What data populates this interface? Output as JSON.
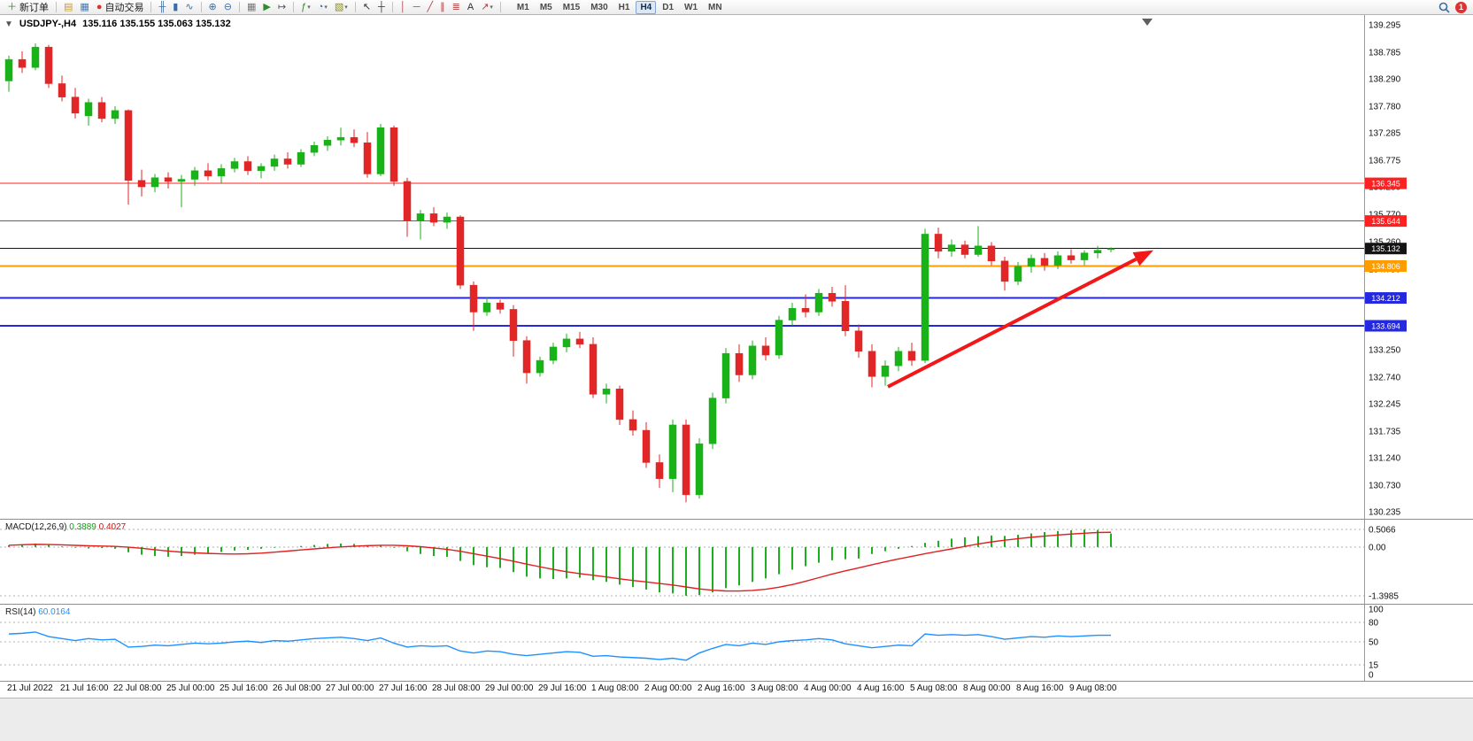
{
  "toolbar": {
    "groups": [
      {
        "name": "orders",
        "items": [
          {
            "name": "new-order-button",
            "icon": "new-order-icon",
            "glyph": "＋",
            "color": "#18a018",
            "label": "新订单"
          }
        ]
      },
      {
        "name": "windows",
        "items": [
          {
            "name": "charts-window-icon",
            "icon": "charts-window-icon",
            "glyph": "▤",
            "color": "#c89b30"
          },
          {
            "name": "data-window-icon",
            "icon": "data-window-icon",
            "glyph": "▦",
            "color": "#4a78b0"
          },
          {
            "name": "autotrade-button",
            "icon": "autotrade-icon",
            "glyph": "●",
            "color": "#d83030",
            "label": "自动交易"
          }
        ]
      },
      {
        "name": "chart-type",
        "items": [
          {
            "name": "bar-chart-button",
            "icon": "bar-chart-icon",
            "glyph": "╫",
            "color": "#3a6ea5"
          },
          {
            "name": "candlestick-button",
            "icon": "candlestick-icon",
            "glyph": "▮",
            "color": "#3a6ea5"
          },
          {
            "name": "line-chart-button",
            "icon": "line-chart-icon",
            "glyph": "∿",
            "color": "#3a6ea5"
          }
        ]
      },
      {
        "name": "zoom",
        "items": [
          {
            "name": "zoom-in-button",
            "icon": "zoom-in-icon",
            "glyph": "⊕",
            "color": "#3a6ea5"
          },
          {
            "name": "zoom-out-button",
            "icon": "zoom-out-icon",
            "glyph": "⊖",
            "color": "#3a6ea5"
          }
        ]
      },
      {
        "name": "scroll",
        "items": [
          {
            "name": "tile-windows-button",
            "icon": "tile-windows-icon",
            "glyph": "▦",
            "color": "#777777"
          },
          {
            "name": "autoscroll-button",
            "icon": "autoscroll-icon",
            "glyph": "▶",
            "color": "#2e8b2e"
          },
          {
            "name": "chart-shift-button",
            "icon": "chart-shift-icon",
            "glyph": "↦",
            "color": "#555555"
          }
        ]
      },
      {
        "name": "insert",
        "items": [
          {
            "name": "indicators-button",
            "icon": "indicators-icon",
            "glyph": "ƒ",
            "color": "#2e8b2e",
            "caret": true
          },
          {
            "name": "periods-button",
            "icon": "clock-icon",
            "glyph": "◔",
            "color": "#3a6ea5",
            "caret": true
          },
          {
            "name": "templates-button",
            "icon": "template-icon",
            "glyph": "▧",
            "color": "#8a8a30",
            "caret": true
          }
        ]
      },
      {
        "name": "pointer",
        "items": [
          {
            "name": "cursor-button",
            "icon": "cursor-icon",
            "glyph": "↖",
            "color": "#303030"
          },
          {
            "name": "crosshair-button",
            "icon": "crosshair-icon",
            "glyph": "┼",
            "color": "#303030"
          }
        ]
      },
      {
        "name": "draw",
        "items": [
          {
            "name": "vertical-line-button",
            "icon": "vertical-line-icon",
            "glyph": "│",
            "color": "#b04040"
          },
          {
            "name": "horizontal-line-button",
            "icon": "horizontal-line-icon",
            "glyph": "─",
            "color": "#b04040"
          },
          {
            "name": "trendline-button",
            "icon": "trendline-icon",
            "glyph": "╱",
            "color": "#b04040"
          },
          {
            "name": "channel-button",
            "icon": "channel-icon",
            "glyph": "∥",
            "color": "#b04040"
          },
          {
            "name": "fibonacci-button",
            "icon": "fibonacci-icon",
            "glyph": "≣",
            "color": "#b04040"
          },
          {
            "name": "text-button",
            "icon": "text-icon",
            "glyph": "A",
            "color": "#303030"
          },
          {
            "name": "arrows-button",
            "icon": "arrow-object-icon",
            "glyph": "↗",
            "color": "#b04040",
            "caret": true
          }
        ]
      }
    ],
    "timeframes": [
      "M1",
      "M5",
      "M15",
      "M30",
      "H1",
      "H4",
      "D1",
      "W1",
      "MN"
    ],
    "active_timeframe": "H4",
    "badge_value": "1"
  },
  "chart": {
    "symbol_header": "USDJPY-,H4",
    "ohlc_text": "135.116 135.155 135.063 135.132",
    "one_click_glyph": "▼",
    "colors": {
      "up": "#19b219",
      "down": "#e02626"
    },
    "price_axis": [
      "139.295",
      "138.785",
      "138.290",
      "137.780",
      "137.285",
      "136.775",
      "136.280",
      "135.770",
      "135.260",
      "134.750",
      "134.240",
      "133.745",
      "133.250",
      "132.740",
      "132.245",
      "131.735",
      "131.240",
      "130.730",
      "130.235"
    ],
    "levels": [
      {
        "label": "136.345",
        "price": 136.345,
        "color": "#ff2020",
        "width": 1,
        "role": "resistance"
      },
      {
        "label": "135.644",
        "price": 135.644,
        "color": "#ff2020",
        "width": 1,
        "role": "resistance"
      },
      {
        "label": "135.132",
        "price": 135.132,
        "color": "#141414",
        "width": 1,
        "role": "current-price"
      },
      {
        "label": "134.806",
        "price": 134.806,
        "color": "#ff9c00",
        "width": 2,
        "role": "pivot"
      },
      {
        "label": "134.212",
        "price": 134.212,
        "color": "#2428e0",
        "width": 2,
        "role": "support"
      },
      {
        "label": "133.694",
        "price": 133.694,
        "color": "#2428e0",
        "width": 2,
        "role": "support"
      }
    ],
    "arrow": {
      "from_bar": 66.2,
      "from_price": 132.56,
      "to_bar": 86.2,
      "to_price": 135.1,
      "color": "#f01818"
    },
    "time_axis": [
      "21 Jul 2022",
      "21 Jul 16:00",
      "22 Jul 08:00",
      "25 Jul 00:00",
      "25 Jul 16:00",
      "26 Jul 08:00",
      "27 Jul 00:00",
      "27 Jul 16:00",
      "28 Jul 08:00",
      "29 Jul 00:00",
      "29 Jul 16:00",
      "1 Aug 08:00",
      "2 Aug 00:00",
      "2 Aug 16:00",
      "3 Aug 08:00",
      "4 Aug 00:00",
      "4 Aug 16:00",
      "5 Aug 08:00",
      "8 Aug 00:00",
      "8 Aug 16:00",
      "9 Aug 08:00"
    ],
    "candles": [
      [
        138.25,
        138.72,
        138.05,
        138.65
      ],
      [
        138.65,
        138.8,
        138.4,
        138.5
      ],
      [
        138.5,
        138.95,
        138.45,
        138.88
      ],
      [
        138.88,
        138.92,
        138.12,
        138.2
      ],
      [
        138.2,
        138.35,
        137.87,
        137.95
      ],
      [
        137.95,
        138.12,
        137.55,
        137.65
      ],
      [
        137.6,
        137.92,
        137.42,
        137.85
      ],
      [
        137.85,
        137.95,
        137.48,
        137.55
      ],
      [
        137.55,
        137.78,
        137.45,
        137.7
      ],
      [
        137.7,
        137.72,
        135.95,
        136.4
      ],
      [
        136.4,
        136.6,
        136.1,
        136.28
      ],
      [
        136.28,
        136.52,
        136.18,
        136.45
      ],
      [
        136.45,
        136.55,
        136.25,
        136.38
      ],
      [
        136.38,
        136.5,
        135.9,
        136.42
      ],
      [
        136.42,
        136.65,
        136.3,
        136.58
      ],
      [
        136.58,
        136.72,
        136.4,
        136.48
      ],
      [
        136.48,
        136.7,
        136.35,
        136.62
      ],
      [
        136.62,
        136.82,
        136.55,
        136.75
      ],
      [
        136.75,
        136.85,
        136.5,
        136.58
      ],
      [
        136.58,
        136.72,
        136.44,
        136.66
      ],
      [
        136.66,
        136.88,
        136.58,
        136.8
      ],
      [
        136.8,
        136.92,
        136.62,
        136.7
      ],
      [
        136.7,
        136.98,
        136.65,
        136.92
      ],
      [
        136.92,
        137.12,
        136.85,
        137.05
      ],
      [
        137.05,
        137.22,
        136.95,
        137.15
      ],
      [
        137.15,
        137.38,
        137.05,
        137.2
      ],
      [
        137.2,
        137.35,
        137.02,
        137.1
      ],
      [
        137.1,
        137.3,
        136.45,
        136.52
      ],
      [
        136.52,
        137.45,
        136.48,
        137.38
      ],
      [
        137.38,
        137.42,
        136.3,
        136.38
      ],
      [
        136.38,
        136.45,
        135.35,
        135.65
      ],
      [
        135.65,
        135.85,
        135.3,
        135.78
      ],
      [
        135.78,
        135.9,
        135.55,
        135.62
      ],
      [
        135.62,
        135.8,
        135.5,
        135.72
      ],
      [
        135.72,
        135.75,
        134.38,
        134.45
      ],
      [
        134.45,
        134.52,
        133.6,
        133.95
      ],
      [
        133.95,
        134.22,
        133.88,
        134.12
      ],
      [
        134.12,
        134.18,
        133.92,
        134.0
      ],
      [
        134.0,
        134.08,
        133.12,
        133.42
      ],
      [
        133.42,
        133.5,
        132.62,
        132.82
      ],
      [
        132.82,
        133.12,
        132.75,
        133.05
      ],
      [
        133.05,
        133.38,
        132.98,
        133.3
      ],
      [
        133.3,
        133.55,
        133.2,
        133.45
      ],
      [
        133.45,
        133.58,
        133.28,
        133.35
      ],
      [
        133.35,
        133.48,
        132.35,
        132.42
      ],
      [
        132.42,
        132.62,
        132.25,
        132.52
      ],
      [
        132.52,
        132.58,
        131.85,
        131.95
      ],
      [
        131.95,
        132.12,
        131.65,
        131.75
      ],
      [
        131.75,
        131.9,
        131.05,
        131.15
      ],
      [
        131.15,
        131.3,
        130.68,
        130.85
      ],
      [
        130.85,
        131.95,
        130.6,
        131.85
      ],
      [
        131.85,
        131.95,
        130.41,
        130.55
      ],
      [
        130.55,
        131.6,
        130.48,
        131.5
      ],
      [
        131.5,
        132.45,
        131.4,
        132.35
      ],
      [
        132.35,
        133.28,
        132.25,
        133.18
      ],
      [
        133.18,
        133.35,
        132.65,
        132.78
      ],
      [
        132.78,
        133.42,
        132.7,
        133.32
      ],
      [
        133.32,
        133.48,
        133.05,
        133.15
      ],
      [
        133.15,
        133.88,
        133.08,
        133.8
      ],
      [
        133.8,
        134.12,
        133.7,
        134.02
      ],
      [
        134.02,
        134.28,
        133.85,
        133.95
      ],
      [
        133.95,
        134.38,
        133.88,
        134.3
      ],
      [
        134.3,
        134.42,
        134.05,
        134.15
      ],
      [
        134.15,
        134.45,
        133.5,
        133.6
      ],
      [
        133.6,
        133.72,
        133.1,
        133.22
      ],
      [
        133.22,
        133.35,
        132.55,
        132.75
      ],
      [
        132.75,
        133.05,
        132.58,
        132.95
      ],
      [
        132.95,
        133.3,
        132.85,
        133.22
      ],
      [
        133.22,
        133.38,
        132.95,
        133.05
      ],
      [
        133.05,
        135.5,
        133.0,
        135.4
      ],
      [
        135.4,
        135.52,
        134.95,
        135.08
      ],
      [
        135.08,
        135.3,
        134.98,
        135.2
      ],
      [
        135.2,
        135.28,
        134.95,
        135.02
      ],
      [
        135.02,
        135.55,
        134.98,
        135.18
      ],
      [
        135.18,
        135.25,
        134.82,
        134.9
      ],
      [
        134.9,
        134.98,
        134.35,
        134.52
      ],
      [
        134.52,
        134.88,
        134.45,
        134.8
      ],
      [
        134.8,
        135.02,
        134.68,
        134.95
      ],
      [
        134.95,
        135.05,
        134.72,
        134.82
      ],
      [
        134.82,
        135.08,
        134.75,
        135.0
      ],
      [
        135.0,
        135.12,
        134.85,
        134.92
      ],
      [
        134.92,
        135.1,
        134.82,
        135.05
      ],
      [
        135.05,
        135.18,
        134.95,
        135.1
      ],
      [
        135.116,
        135.155,
        135.063,
        135.132
      ]
    ]
  },
  "macd": {
    "name": "MACD(12,26,9)",
    "value_main": "0.3889",
    "value_signal": "0.4027",
    "axis": [
      "0.5066",
      "0.00",
      "-1.3985"
    ],
    "histogram_color": "#1fae1f",
    "signal_color": "#e02020",
    "values": [
      0.05,
      0.08,
      0.1,
      0.06,
      0.02,
      -0.02,
      -0.04,
      -0.03,
      -0.05,
      -0.15,
      -0.22,
      -0.26,
      -0.28,
      -0.26,
      -0.22,
      -0.18,
      -0.14,
      -0.1,
      -0.08,
      -0.05,
      -0.02,
      0.0,
      0.03,
      0.06,
      0.09,
      0.1,
      0.09,
      0.05,
      0.04,
      -0.02,
      -0.12,
      -0.2,
      -0.26,
      -0.28,
      -0.4,
      -0.52,
      -0.58,
      -0.6,
      -0.72,
      -0.85,
      -0.9,
      -0.92,
      -0.9,
      -0.88,
      -0.95,
      -1.0,
      -1.08,
      -1.15,
      -1.22,
      -1.3,
      -1.33,
      -1.4,
      -1.38,
      -1.3,
      -1.18,
      -1.1,
      -1.0,
      -0.9,
      -0.78,
      -0.65,
      -0.55,
      -0.45,
      -0.38,
      -0.35,
      -0.33,
      -0.2,
      -0.12,
      -0.05,
      0.03,
      0.12,
      0.18,
      0.24,
      0.28,
      0.31,
      0.33,
      0.32,
      0.35,
      0.39,
      0.43,
      0.46,
      0.48,
      0.5,
      0.49,
      0.3889
    ]
  },
  "rsi": {
    "name": "RSI(14)",
    "value": "60.0164",
    "axis": [
      "100",
      "80",
      "50",
      "15",
      "0"
    ],
    "line_color": "#1E90FF",
    "values": [
      62,
      63,
      65,
      58,
      55,
      52,
      55,
      53,
      54,
      42,
      43,
      45,
      44,
      46,
      48,
      47,
      48,
      50,
      51,
      49,
      52,
      51,
      53,
      55,
      56,
      57,
      55,
      52,
      56,
      48,
      42,
      44,
      43,
      44,
      36,
      33,
      36,
      35,
      31,
      29,
      31,
      33,
      35,
      34,
      28,
      29,
      27,
      26,
      25,
      23,
      25,
      22,
      33,
      40,
      46,
      44,
      48,
      46,
      50,
      52,
      53,
      55,
      53,
      47,
      44,
      41,
      43,
      45,
      44,
      62,
      60,
      61,
      60,
      61,
      58,
      54,
      56,
      58,
      57,
      59,
      58,
      59,
      60,
      60.0164
    ]
  }
}
